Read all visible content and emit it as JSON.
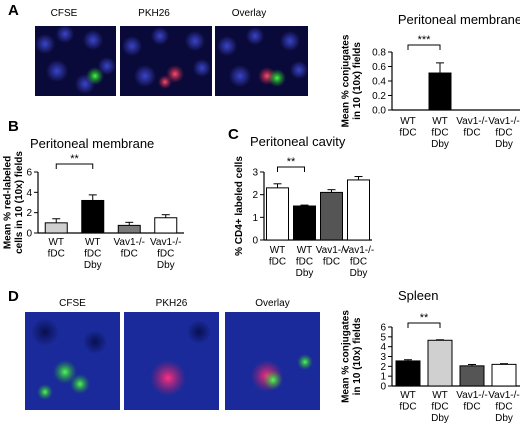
{
  "panels": {
    "A": {
      "letter": "A",
      "images": [
        "CFSE",
        "PKH26",
        "Overlay"
      ],
      "chart": {
        "type": "bar",
        "title": "Peritoneal membrane",
        "ylabel": [
          "Mean % conjugates",
          "in 10 (10x) fields"
        ],
        "ylim": [
          0,
          0.8
        ],
        "yticks": [
          "0.0",
          "0.2",
          "0.4",
          "0.6",
          "0.8"
        ],
        "categories": [
          [
            "WT",
            "fDC"
          ],
          [
            "WT",
            "fDC",
            "Dby"
          ],
          [
            "Vav1-/-",
            "fDC"
          ],
          [
            "Vav1-/-",
            "fDC",
            "Dby"
          ]
        ],
        "values": [
          0,
          0.51,
          0,
          0
        ],
        "errors": [
          0,
          0.14,
          0,
          0
        ],
        "colors": [
          "#ffffff",
          "#000000",
          "#ffffff",
          "#ffffff"
        ],
        "sig": "***"
      }
    },
    "B": {
      "letter": "B",
      "chart": {
        "type": "bar",
        "title": "Peritoneal membrane",
        "ylabel": [
          "Mean % red-labeled",
          "cells in 10 (10x) fields"
        ],
        "ylim": [
          0,
          6
        ],
        "yticks": [
          "0",
          "2",
          "4",
          "6"
        ],
        "categories": [
          [
            "WT",
            "fDC"
          ],
          [
            "WT",
            "fDC",
            "Dby"
          ],
          [
            "Vav1-/-",
            "fDC"
          ],
          [
            "Vav1-/-",
            "fDC",
            "Dby"
          ]
        ],
        "values": [
          1.0,
          3.2,
          0.75,
          1.5
        ],
        "errors": [
          0.4,
          0.55,
          0.3,
          0.3
        ],
        "colors": [
          "#cfcfcf",
          "#000000",
          "#7a7a7a",
          "#ffffff"
        ],
        "sig": "**"
      }
    },
    "C": {
      "letter": "C",
      "chart": {
        "type": "bar",
        "title": "Peritoneal cavity",
        "ylabel": [
          "% CD4+ labeled cells"
        ],
        "ylim": [
          0,
          3
        ],
        "yticks": [
          "0",
          "1",
          "2",
          "3"
        ],
        "categories": [
          [
            "WT",
            "fDC"
          ],
          [
            "WT",
            "fDC",
            "Dby"
          ],
          [
            "Vav1-/-",
            "fDC"
          ],
          [
            "Vav1-/-",
            "fDC",
            "Dby"
          ]
        ],
        "values": [
          2.3,
          1.5,
          2.1,
          2.65
        ],
        "errors": [
          0.18,
          0.04,
          0.12,
          0.15
        ],
        "colors": [
          "#ffffff",
          "#000000",
          "#555555",
          "#ffffff"
        ],
        "sig": "**"
      }
    },
    "D": {
      "letter": "D",
      "images": [
        "CFSE",
        "PKH26",
        "Overlay"
      ],
      "chart": {
        "type": "bar",
        "title": "Spleen",
        "ylabel": [
          "Mean % conjugates",
          "in 10 (10x) fields"
        ],
        "ylim": [
          0,
          6
        ],
        "yticks": [
          "0",
          "1",
          "2",
          "3",
          "4",
          "5",
          "6"
        ],
        "categories": [
          [
            "WT",
            "fDC"
          ],
          [
            "WT",
            "fDC",
            "Dby"
          ],
          [
            "Vav1-/-",
            "fDC"
          ],
          [
            "Vav1-/-",
            "fDC",
            "Dby"
          ]
        ],
        "values": [
          2.55,
          4.65,
          2.05,
          2.2
        ],
        "errors": [
          0.12,
          0.05,
          0.14,
          0.07
        ],
        "colors": [
          "#000000",
          "#d0d0d0",
          "#555555",
          "#ffffff"
        ],
        "sig": "**"
      }
    }
  }
}
